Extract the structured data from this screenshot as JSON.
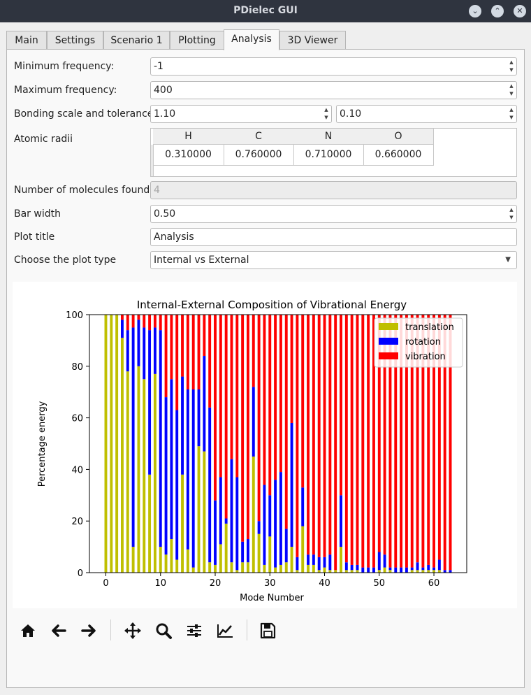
{
  "window": {
    "title": "PDielec GUI"
  },
  "tabs": [
    "Main",
    "Settings",
    "Scenario 1",
    "Plotting",
    "Analysis",
    "3D Viewer"
  ],
  "form": {
    "min_freq_label": "Minimum frequency:",
    "min_freq_value": "-1",
    "max_freq_label": "Maximum frequency:",
    "max_freq_value": "400",
    "bonding_label": "Bonding scale and tolerance",
    "bonding_scale": "1.10",
    "bonding_tolerance": "0.10",
    "radii_label": "Atomic radii",
    "radii_headers": [
      "H",
      "C",
      "N",
      "O"
    ],
    "radii_values": [
      "0.310000",
      "0.760000",
      "0.710000",
      "0.660000"
    ],
    "molecules_label": "Number of molecules found",
    "molecules_value": "4",
    "bar_width_label": "Bar width",
    "bar_width_value": "0.50",
    "plot_title_label": "Plot title",
    "plot_title_value": "Analysis",
    "plot_type_label": "Choose the plot type",
    "plot_type_value": "Internal vs External"
  },
  "chart_data": {
    "type": "bar",
    "stacked": true,
    "title": "Internal-External Composition of Vibrational Energy",
    "xlabel": "Mode Number",
    "ylabel": "Percentage energy",
    "xlim": [
      -3,
      66
    ],
    "ylim": [
      0,
      100
    ],
    "xticks": [
      0,
      10,
      20,
      30,
      40,
      50,
      60
    ],
    "yticks": [
      0,
      20,
      40,
      60,
      80,
      100
    ],
    "legend_position": "top-right",
    "x": [
      0,
      1,
      2,
      3,
      4,
      5,
      6,
      7,
      8,
      9,
      10,
      11,
      12,
      13,
      14,
      15,
      16,
      17,
      18,
      19,
      20,
      21,
      22,
      23,
      24,
      25,
      26,
      27,
      28,
      29,
      30,
      31,
      32,
      33,
      34,
      35,
      36,
      37,
      38,
      39,
      40,
      41,
      42,
      43,
      44,
      45,
      46,
      47,
      48,
      49,
      50,
      51,
      52,
      53,
      54,
      55,
      56,
      57,
      58,
      59,
      60,
      61,
      62,
      63
    ],
    "series": [
      {
        "name": "translation",
        "color": "#bfbf00",
        "values": [
          100,
          100,
          100,
          91,
          78,
          10,
          80,
          75,
          38,
          77,
          10,
          7,
          13,
          5,
          38,
          9,
          2,
          49,
          47,
          4,
          3,
          11,
          19,
          4,
          1,
          4,
          4,
          45,
          15,
          3,
          14,
          2,
          3,
          4,
          10,
          1,
          18,
          3,
          3,
          1,
          2,
          1,
          1,
          10,
          1,
          1,
          1,
          0,
          0,
          0,
          1,
          2,
          1,
          0,
          0,
          0,
          1,
          1,
          1,
          1,
          1,
          1,
          0,
          0
        ]
      },
      {
        "name": "rotation",
        "color": "#0000ff",
        "values": [
          0,
          0,
          0,
          7,
          16,
          85,
          18,
          20,
          56,
          18,
          84,
          61,
          62,
          58,
          38,
          62,
          69,
          22,
          37,
          60,
          25,
          26,
          2,
          40,
          36,
          8,
          9,
          27,
          5,
          31,
          16,
          34,
          36,
          13,
          48,
          5,
          15,
          4,
          4,
          5,
          4,
          6,
          0,
          20,
          3,
          2,
          2,
          2,
          2,
          2,
          7,
          5,
          1,
          2,
          2,
          2,
          1,
          3,
          1,
          2,
          1,
          4,
          1,
          1
        ]
      }
    ],
    "derived_series": {
      "name": "vibration",
      "color": "#ff0000",
      "rule": "100 minus translation minus rotation"
    }
  },
  "toolbar": {
    "icons": [
      "home-icon",
      "back-arrow-icon",
      "forward-arrow-icon",
      "pan-icon",
      "zoom-icon",
      "subplots-config-icon",
      "edit-curves-icon",
      "save-icon"
    ]
  }
}
